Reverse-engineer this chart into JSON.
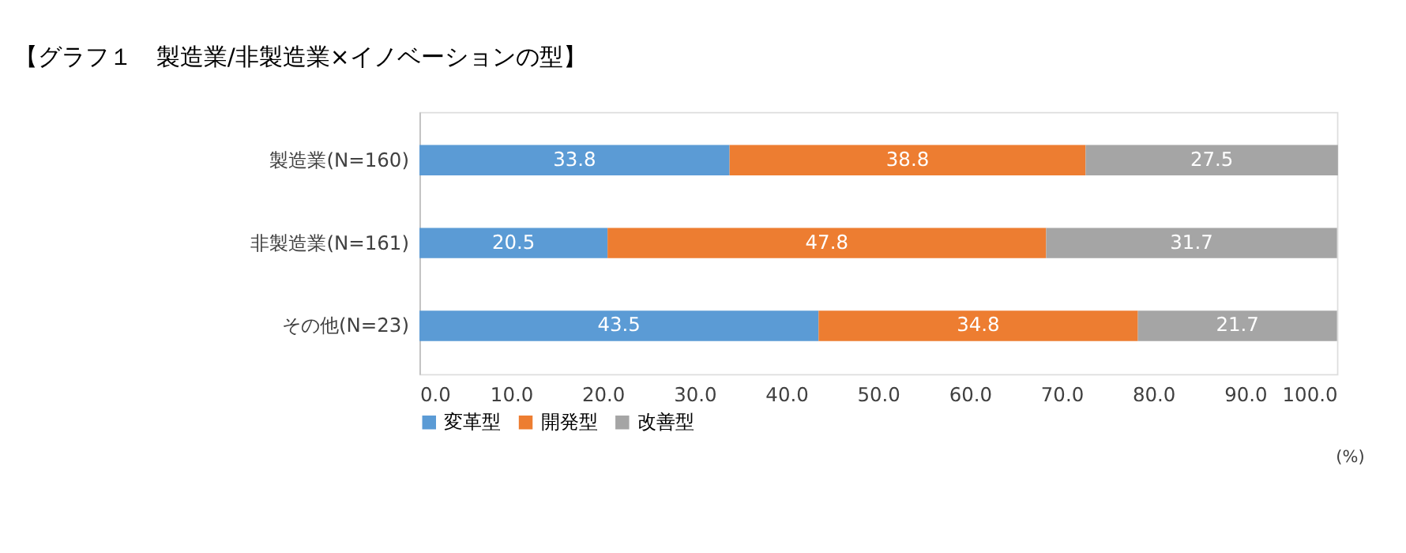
{
  "chart_data": {
    "type": "bar",
    "title": "【グラフ１　製造業/非製造業×イノベーションの型】",
    "orientation": "horizontal",
    "stacked": true,
    "data_labels": true,
    "grid": false,
    "legend": "bottom",
    "categories": [
      "製造業(N=160)",
      "非製造業(N=161)",
      "その他(N=23)"
    ],
    "series": [
      {
        "name": "変革型",
        "color": "#5b9bd5",
        "values": [
          33.8,
          20.5,
          43.5
        ]
      },
      {
        "name": "開発型",
        "color": "#ed7d31",
        "values": [
          38.8,
          47.8,
          34.8
        ]
      },
      {
        "name": "改善型",
        "color": "#a5a5a5",
        "values": [
          27.5,
          31.7,
          21.7
        ]
      }
    ],
    "xlim": [
      0,
      100
    ],
    "xticks": [
      {
        "value": 0,
        "label": "0.0"
      },
      {
        "value": 10,
        "label": "10.0"
      },
      {
        "value": 20,
        "label": "20.0"
      },
      {
        "value": 30,
        "label": "30.0"
      },
      {
        "value": 40,
        "label": "40.0"
      },
      {
        "value": 50,
        "label": "50.0"
      },
      {
        "value": 60,
        "label": "60.0"
      },
      {
        "value": 70,
        "label": "70.0"
      },
      {
        "value": 80,
        "label": "80.0"
      },
      {
        "value": 90,
        "label": "90.0"
      },
      {
        "value": 100,
        "label": "100.0"
      }
    ],
    "annotations": [
      "(%)"
    ]
  }
}
